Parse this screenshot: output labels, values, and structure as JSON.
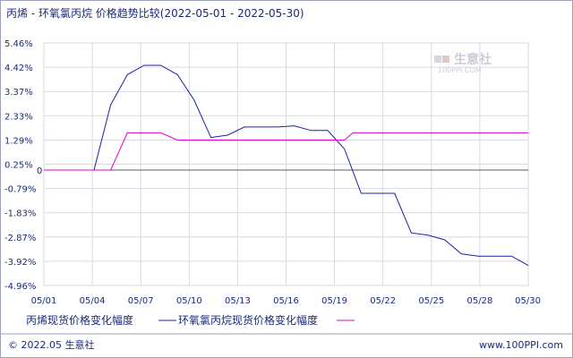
{
  "chart_data": {
    "type": "line",
    "title": "丙烯 - 环氧氯丙烷 价格趋势比较(2022-05-01 - 2022-05-30)",
    "x_ticks": [
      "05/01",
      "05/04",
      "05/07",
      "05/10",
      "05/13",
      "05/16",
      "05/19",
      "05/22",
      "05/25",
      "05/28",
      "05/30"
    ],
    "y_ticks": [
      "5.46%",
      "4.42%",
      "3.37%",
      "2.33%",
      "1.29%",
      "0.25%",
      "-0.79%",
      "-1.83%",
      "-2.87%",
      "-3.92%",
      "-4.96%"
    ],
    "ylim": [
      -4.96,
      5.46
    ],
    "xlim": [
      1,
      30
    ],
    "zero_label": "0",
    "series": [
      {
        "name": "丙烯现货价格变化幅度",
        "color": "#1c1fa8",
        "points": [
          [
            1,
            0
          ],
          [
            4,
            0
          ],
          [
            5,
            2.8
          ],
          [
            6,
            4.1
          ],
          [
            7,
            4.5
          ],
          [
            8,
            4.5
          ],
          [
            9,
            4.1
          ],
          [
            10,
            3.0
          ],
          [
            11,
            1.4
          ],
          [
            12,
            1.5
          ],
          [
            13,
            1.85
          ],
          [
            15,
            1.85
          ],
          [
            16,
            1.9
          ],
          [
            17,
            1.7
          ],
          [
            18,
            1.7
          ],
          [
            19,
            0.9
          ],
          [
            20,
            -1.0
          ],
          [
            22,
            -1.0
          ],
          [
            23,
            -2.7
          ],
          [
            24,
            -2.8
          ],
          [
            25,
            -3.0
          ],
          [
            26,
            -3.6
          ],
          [
            27,
            -3.7
          ],
          [
            29,
            -3.7
          ],
          [
            30,
            -4.1
          ]
        ]
      },
      {
        "name": "环氧氯丙烷现货价格变化幅度",
        "color": "#e000c8",
        "points": [
          [
            1,
            0
          ],
          [
            5,
            0
          ],
          [
            6,
            1.6
          ],
          [
            8,
            1.6
          ],
          [
            9,
            1.29
          ],
          [
            19,
            1.29
          ],
          [
            19.5,
            1.6
          ],
          [
            30,
            1.6
          ]
        ]
      }
    ],
    "legend_position": "bottom-left"
  },
  "footer": {
    "left": "© 2022.05 生意社",
    "right": "www.100PPI.com"
  },
  "watermark": {
    "text": "生意社",
    "sub": "100PPI.COM"
  }
}
